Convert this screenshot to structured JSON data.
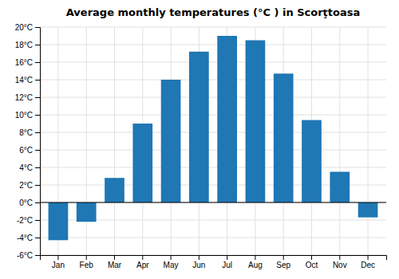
{
  "chart_data": {
    "type": "bar",
    "title": "Average monthly temperatures (°C ) in Scorţtoasa",
    "categories": [
      "Jan",
      "Feb",
      "Mar",
      "Apr",
      "May",
      "Jun",
      "Jul",
      "Aug",
      "Sep",
      "Oct",
      "Nov",
      "Dec"
    ],
    "values": [
      -4.3,
      -2.2,
      2.8,
      9.0,
      14.0,
      17.2,
      19.0,
      18.5,
      14.7,
      9.4,
      3.5,
      -1.7
    ],
    "ylim": [
      -6,
      20
    ],
    "yticks": [
      {
        "value": -6,
        "label": "-6°C"
      },
      {
        "value": -4,
        "label": "-4°C"
      },
      {
        "value": -2,
        "label": "-2°C"
      },
      {
        "value": 0,
        "label": "0°C"
      },
      {
        "value": 2,
        "label": "2°C"
      },
      {
        "value": 4,
        "label": "4°C"
      },
      {
        "value": 6,
        "label": "6°C"
      },
      {
        "value": 8,
        "label": "8°C"
      },
      {
        "value": 10,
        "label": "10°C"
      },
      {
        "value": 12,
        "label": "12°C"
      },
      {
        "value": 14,
        "label": "14°C"
      },
      {
        "value": 16,
        "label": "16°C"
      },
      {
        "value": 18,
        "label": "18°C"
      },
      {
        "value": 20,
        "label": "20°C"
      }
    ],
    "grid": true
  }
}
